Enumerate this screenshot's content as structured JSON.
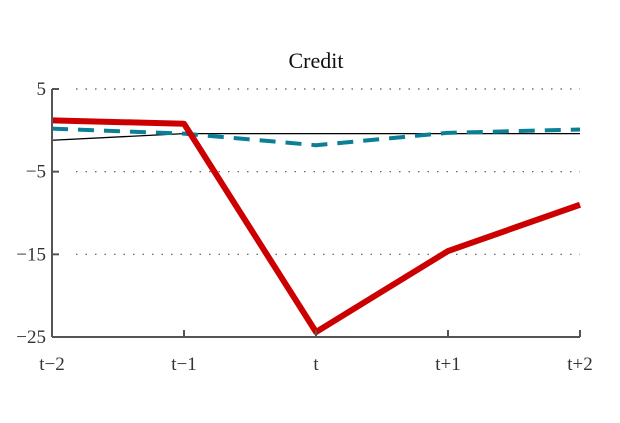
{
  "chart_data": {
    "type": "line",
    "title": "Credit",
    "xlabel": "",
    "ylabel": "",
    "categories": [
      "t−2",
      "t−1",
      "t",
      "t+1",
      "t+2"
    ],
    "ylim": [
      -25,
      5
    ],
    "yticks": [
      5,
      -5,
      -15,
      -25
    ],
    "ytick_labels": [
      "5",
      "−5",
      "−15",
      "−25"
    ],
    "grid": "horizontal-dotted",
    "legend": "none",
    "series": [
      {
        "color": "#cc0000",
        "style": "solid-thick",
        "values": [
          1.2,
          0.8,
          -24.4,
          -14.6,
          -9.0
        ]
      },
      {
        "color": "#0a7f96",
        "style": "dashed",
        "values": [
          0.2,
          -0.4,
          -1.8,
          -0.3,
          0.1
        ]
      },
      {
        "color": "#000000",
        "style": "solid-thin",
        "values": [
          -1.2,
          -0.4,
          -0.4,
          -0.4,
          -0.4
        ]
      }
    ]
  }
}
